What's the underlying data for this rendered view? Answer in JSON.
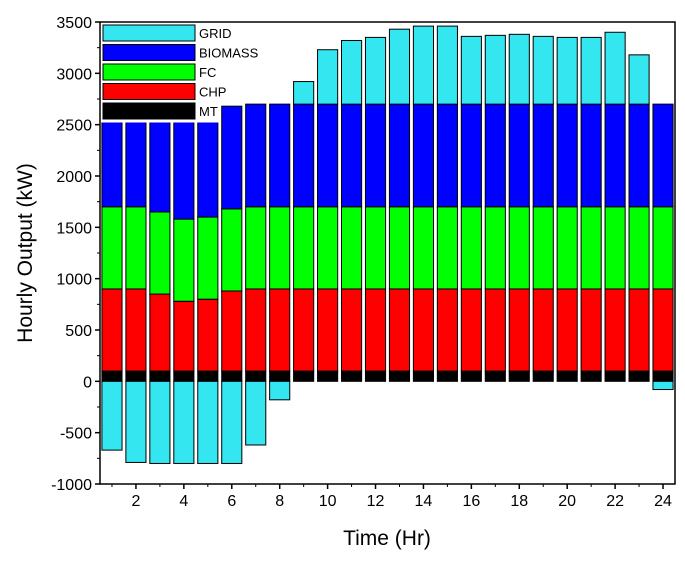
{
  "chart_data": {
    "type": "bar",
    "stacked": true,
    "title": "",
    "xlabel": "Time (Hr)",
    "ylabel": "Hourly Output (kW)",
    "ylim": [
      -1000,
      3500
    ],
    "xlim": [
      0.5,
      24.5
    ],
    "yticks": [
      -1000,
      -500,
      0,
      500,
      1000,
      1500,
      2000,
      2500,
      3000,
      3500
    ],
    "xticks": [
      2,
      4,
      6,
      8,
      10,
      12,
      14,
      16,
      18,
      20,
      22,
      24
    ],
    "categories": [
      1,
      2,
      3,
      4,
      5,
      6,
      7,
      8,
      9,
      10,
      11,
      12,
      13,
      14,
      15,
      16,
      17,
      18,
      19,
      20,
      21,
      22,
      23,
      24
    ],
    "legend_position": "top-left",
    "series": [
      {
        "name": "MT",
        "color": "#000000",
        "values": [
          100,
          100,
          100,
          100,
          100,
          100,
          100,
          100,
          100,
          100,
          100,
          100,
          100,
          100,
          100,
          100,
          100,
          100,
          100,
          100,
          100,
          100,
          100,
          100
        ]
      },
      {
        "name": "CHP",
        "color": "#ff0000",
        "values": [
          800,
          800,
          750,
          680,
          700,
          780,
          800,
          800,
          800,
          800,
          800,
          800,
          800,
          800,
          800,
          800,
          800,
          800,
          800,
          800,
          800,
          800,
          800,
          800
        ]
      },
      {
        "name": "FC",
        "color": "#00ff00",
        "values": [
          800,
          800,
          800,
          800,
          800,
          800,
          800,
          800,
          800,
          800,
          800,
          800,
          800,
          800,
          800,
          800,
          800,
          800,
          800,
          800,
          800,
          800,
          800,
          800
        ]
      },
      {
        "name": "BIOMASS",
        "color": "#0000ff",
        "values": [
          1000,
          1000,
          1000,
          1000,
          1000,
          1000,
          1000,
          1000,
          1000,
          1000,
          1000,
          1000,
          1000,
          1000,
          1000,
          1000,
          1000,
          1000,
          1000,
          1000,
          1000,
          1000,
          1000,
          1000
        ]
      },
      {
        "name": "GRID",
        "color": "#33e6f0",
        "values": [
          -670,
          -790,
          -800,
          -800,
          -800,
          -800,
          -620,
          -180,
          220,
          530,
          620,
          650,
          730,
          760,
          760,
          660,
          670,
          680,
          660,
          650,
          650,
          700,
          480,
          -80
        ]
      }
    ]
  }
}
